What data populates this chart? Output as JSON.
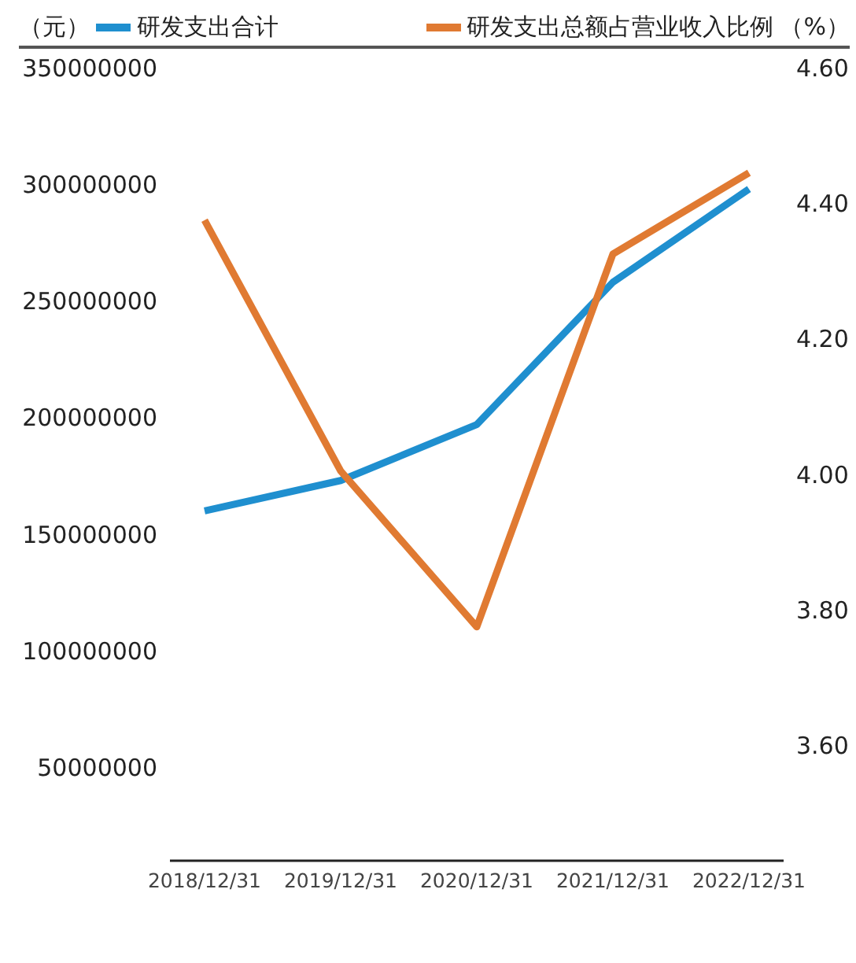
{
  "chart_data": {
    "type": "line",
    "ylabel": "（元）",
    "y2label": "（%）",
    "categories": [
      "2018/12/31",
      "2019/12/31",
      "2020/12/31",
      "2021/12/31",
      "2022/12/31"
    ],
    "series": [
      {
        "name": "研发支出合计",
        "color": "#1f8fcf",
        "values": [
          160000000,
          173000000,
          197000000,
          258000000,
          298000000
        ]
      },
      {
        "name": "研发支出总额占营业收入比例",
        "color": "#e07a32",
        "axis": "y2",
        "values": [
          4.375,
          4.005,
          3.775,
          4.325,
          4.445
        ]
      }
    ],
    "ylim": [
      10000000,
      350000000
    ],
    "yticks": [
      50000000,
      100000000,
      150000000,
      200000000,
      250000000,
      300000000,
      350000000
    ],
    "y2lim": [
      3.43,
      4.6
    ],
    "y2ticks": [
      {
        "value": 3.6,
        "label": "3.60"
      },
      {
        "value": 3.8,
        "label": "3.80"
      },
      {
        "value": 4.0,
        "label": "4.00"
      },
      {
        "value": 4.2,
        "label": "4.20"
      },
      {
        "value": 4.4,
        "label": "4.40"
      },
      {
        "value": 4.6,
        "label": "4.60"
      }
    ],
    "grid": false,
    "legend": "top",
    "marker": "none",
    "line_style": "solid"
  }
}
